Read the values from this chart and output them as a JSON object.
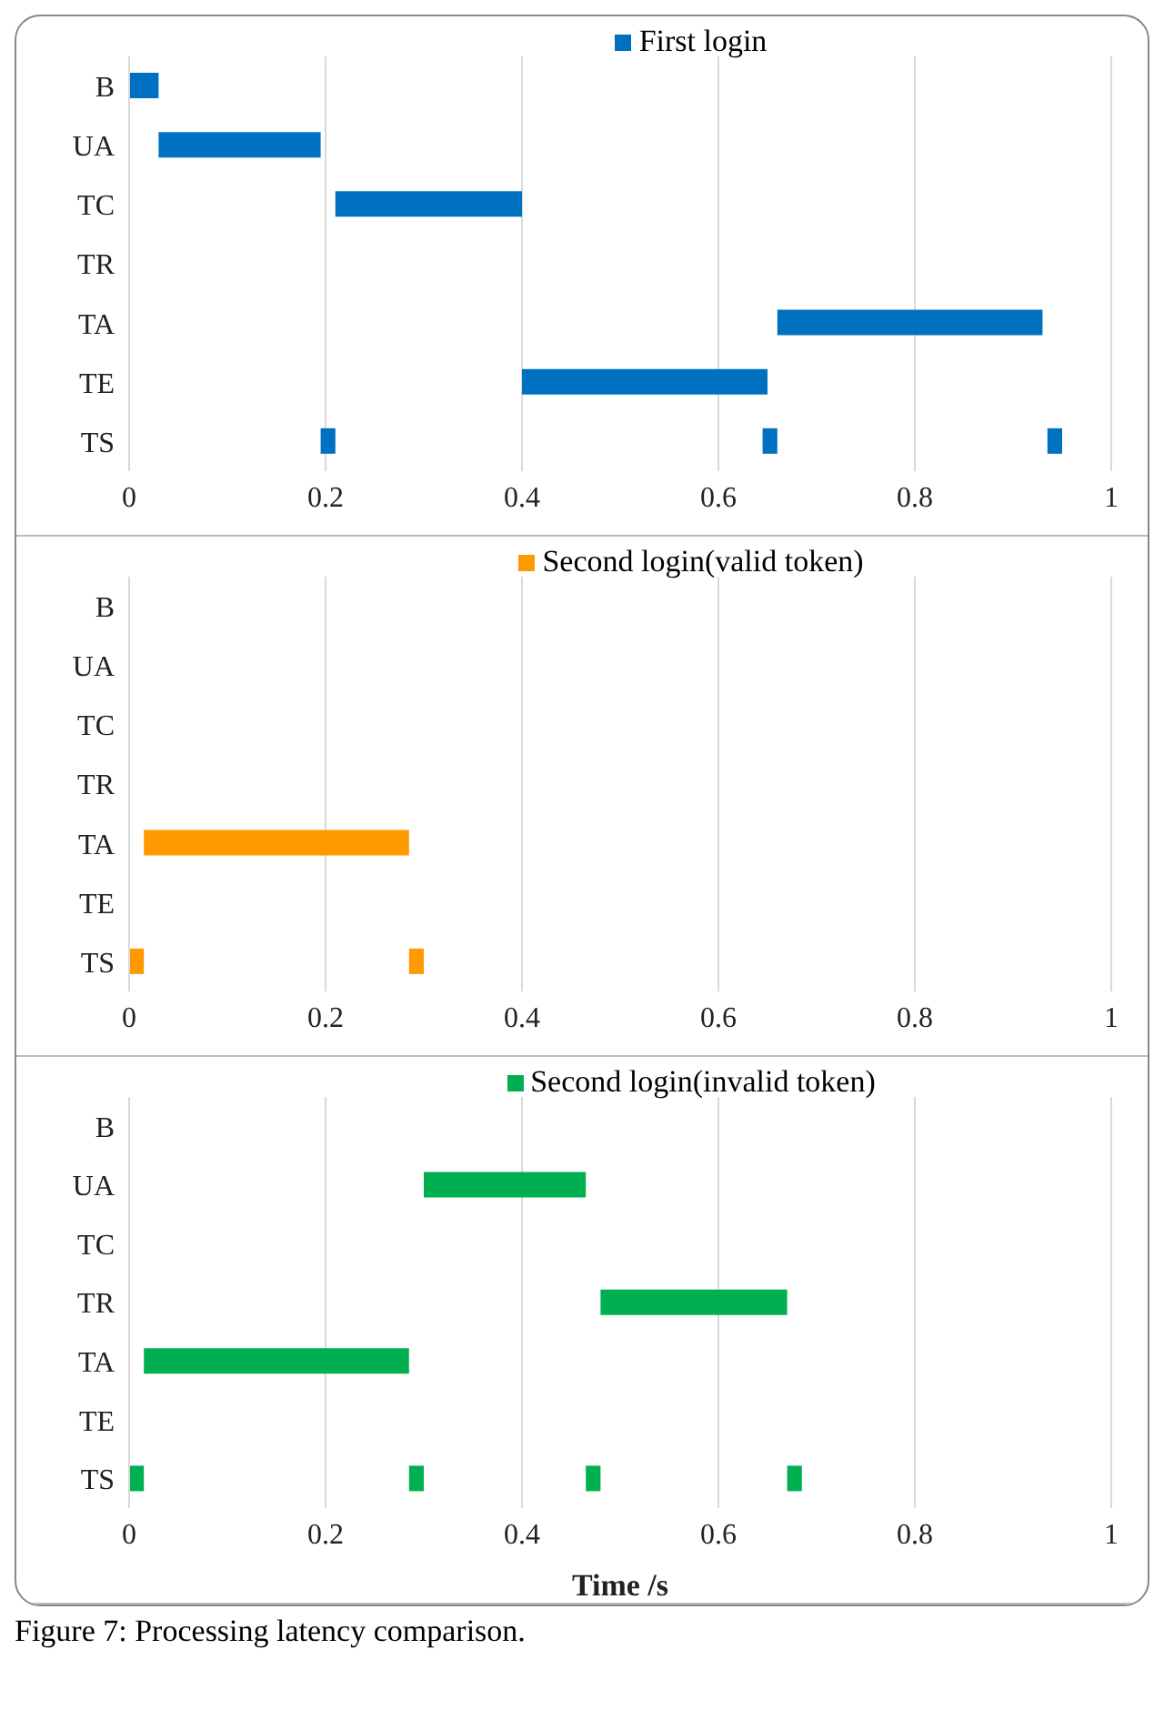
{
  "chart_data": [
    {
      "type": "bar",
      "orientation": "horizontal",
      "categories": [
        "B",
        "UA",
        "TC",
        "TR",
        "TA",
        "TE",
        "TS"
      ],
      "xlim": [
        0,
        1
      ],
      "xticks": [
        0,
        0.2,
        0.4,
        0.6,
        0.8,
        1
      ],
      "grid": "x",
      "legend": "top",
      "series": [
        {
          "name": "First login",
          "color": "#0070c0",
          "values": [
            0.03,
            0.165,
            0.19,
            null,
            0.27,
            0.25,
            0.015
          ],
          "base": [
            0,
            0.03,
            0.21,
            null,
            0.66,
            0.4,
            0.195
          ]
        },
        {
          "color": "#0070c0",
          "values": [
            null,
            null,
            null,
            null,
            null,
            null,
            0.015
          ],
          "base": [
            null,
            null,
            null,
            null,
            null,
            null,
            0.645
          ]
        },
        {
          "color": "#0070c0",
          "values": [
            null,
            null,
            null,
            null,
            null,
            null,
            0.015
          ],
          "base": [
            null,
            null,
            null,
            null,
            null,
            null,
            0.935
          ]
        }
      ]
    },
    {
      "type": "bar",
      "orientation": "horizontal",
      "categories": [
        "B",
        "UA",
        "TC",
        "TR",
        "TA",
        "TE",
        "TS"
      ],
      "xlim": [
        0,
        1
      ],
      "xticks": [
        0,
        0.2,
        0.4,
        0.6,
        0.8,
        1
      ],
      "grid": "x",
      "legend": "top",
      "series": [
        {
          "name": "Second login(valid token)",
          "color": "#ff9900",
          "values": [
            null,
            null,
            null,
            null,
            0.27,
            null,
            0.015
          ],
          "base": [
            null,
            null,
            null,
            null,
            0.015,
            null,
            0
          ]
        },
        {
          "color": "#ff9900",
          "values": [
            null,
            null,
            null,
            null,
            null,
            null,
            0.015
          ],
          "base": [
            null,
            null,
            null,
            null,
            null,
            null,
            0.285
          ]
        }
      ]
    },
    {
      "type": "bar",
      "orientation": "horizontal",
      "categories": [
        "B",
        "UA",
        "TC",
        "TR",
        "TA",
        "TE",
        "TS"
      ],
      "xlim": [
        0,
        1
      ],
      "xticks": [
        0,
        0.2,
        0.4,
        0.6,
        0.8,
        1
      ],
      "grid": "x",
      "legend": "top",
      "xlabel": "Time /s",
      "annotations": [
        "Figure 7: Processing latency comparison."
      ],
      "series": [
        {
          "name": "Second login(invalid token)",
          "color": "#00b050",
          "values": [
            null,
            0.165,
            null,
            0.19,
            0.27,
            null,
            0.015
          ],
          "base": [
            null,
            0.3,
            null,
            0.48,
            0.015,
            null,
            0
          ]
        },
        {
          "color": "#00b050",
          "values": [
            null,
            null,
            null,
            null,
            null,
            null,
            0.015
          ],
          "base": [
            null,
            null,
            null,
            null,
            null,
            null,
            0.285
          ]
        },
        {
          "color": "#00b050",
          "values": [
            null,
            null,
            null,
            null,
            null,
            null,
            0.015
          ],
          "base": [
            null,
            null,
            null,
            null,
            null,
            null,
            0.465
          ]
        },
        {
          "color": "#00b050",
          "values": [
            null,
            null,
            null,
            null,
            null,
            null,
            0.015
          ],
          "base": [
            null,
            null,
            null,
            null,
            null,
            null,
            0.67
          ]
        }
      ]
    }
  ]
}
